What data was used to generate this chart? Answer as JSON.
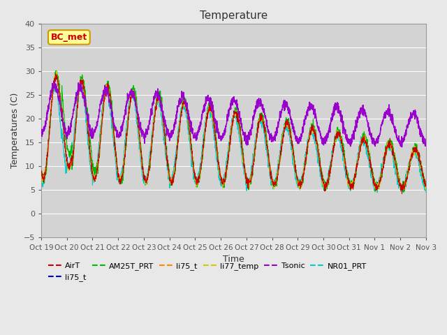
{
  "title": "Temperature",
  "xlabel": "Time",
  "ylabel": "Temperatures (C)",
  "ylim": [
    -5,
    40
  ],
  "n_days": 15,
  "pts_per_day": 144,
  "x_tick_labels": [
    "Oct 19",
    "Oct 20",
    "Oct 21",
    "Oct 22",
    "Oct 23",
    "Oct 24",
    "Oct 25",
    "Oct 26",
    "Oct 27",
    "Oct 28",
    "Oct 29",
    "Oct 30",
    "Oct 31",
    "Nov 1",
    "Nov 2",
    "Nov 3"
  ],
  "series_colors": [
    "#cc0000",
    "#0000cc",
    "#00bb00",
    "#ff8800",
    "#cccc00",
    "#9900cc",
    "#00cccc"
  ],
  "series_labels": [
    "AirT",
    "li75_t",
    "AM25T_PRT",
    "li75_t",
    "li77_temp",
    "Tsonic",
    "NR01_PRT"
  ],
  "annotation_text": "BC_met",
  "annotation_color": "#cc0000",
  "annotation_bg": "#ffff99",
  "annotation_border": "#cc9900",
  "fig_bg": "#e8e8e8",
  "ax_bg": "#d3d3d3",
  "grid_color": "#ffffff",
  "tick_color": "#555555",
  "title_color": "#333333",
  "label_color": "#333333",
  "spine_color": "#999999"
}
